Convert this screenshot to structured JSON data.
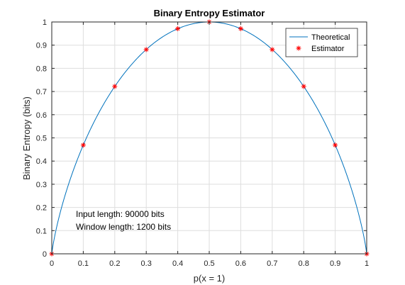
{
  "chart_data": {
    "type": "line",
    "title": "Binary Entropy Estimator",
    "xlabel": "p(x = 1)",
    "ylabel": "Binary Entropy (bits)",
    "xlim": [
      0,
      1
    ],
    "ylim": [
      0,
      1
    ],
    "grid": true,
    "legend_position": "top-right",
    "x_ticks": [
      0,
      0.1,
      0.2,
      0.3,
      0.4,
      0.5,
      0.6,
      0.7,
      0.8,
      0.9,
      1
    ],
    "x_tick_labels": [
      "0",
      "0.1",
      "0.2",
      "0.3",
      "0.4",
      "0.5",
      "0.6",
      "0.7",
      "0.8",
      "0.9",
      "1"
    ],
    "y_ticks": [
      0,
      0.1,
      0.2,
      0.3,
      0.4,
      0.5,
      0.6,
      0.7,
      0.8,
      0.9,
      1
    ],
    "y_tick_labels": [
      "0",
      "0.1",
      "0.2",
      "0.3",
      "0.4",
      "0.5",
      "0.6",
      "0.7",
      "0.8",
      "0.9",
      "1"
    ],
    "series": [
      {
        "name": "Theoretical",
        "type": "line",
        "color": "#0072bd",
        "function": "binary-entropy"
      },
      {
        "name": "Estimator",
        "type": "scatter",
        "marker": "asterisk",
        "color": "#ff0000",
        "x": [
          0,
          0.1,
          0.2,
          0.3,
          0.4,
          0.5,
          0.6,
          0.7,
          0.8,
          0.9,
          1
        ],
        "y": [
          0,
          0.469,
          0.722,
          0.881,
          0.971,
          1.0,
          0.971,
          0.881,
          0.722,
          0.469,
          0
        ]
      }
    ],
    "annotations": [
      "Input length: 90000 bits",
      "Window length: 1200 bits"
    ]
  }
}
